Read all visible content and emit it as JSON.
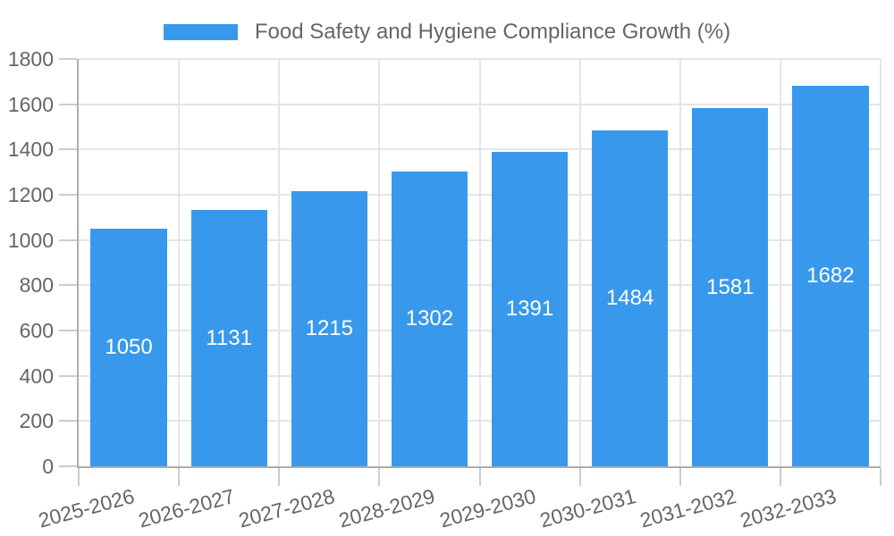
{
  "chart_data": {
    "type": "bar",
    "title": "Food Safety and Hygiene Compliance Growth (%)",
    "categories": [
      "2025-2026",
      "2026-2027",
      "2027-2028",
      "2028-2029",
      "2029-2030",
      "2030-2031",
      "2031-2032",
      "2032-2033"
    ],
    "values": [
      1050,
      1131,
      1215,
      1302,
      1391,
      1484,
      1581,
      1682
    ],
    "xlabel": "",
    "ylabel": "",
    "ylim": [
      0,
      1800
    ],
    "ytick_step": 200,
    "grid": true,
    "legend_position": "top-center",
    "value_label_position": "center-of-bar",
    "colors": {
      "bar": "#3899EC",
      "value_label": "#ffffff",
      "grid": "#e5e5e5",
      "tick": "#cccccc",
      "axis": "#adadad",
      "text": "#666666",
      "background": "#ffffff"
    }
  }
}
